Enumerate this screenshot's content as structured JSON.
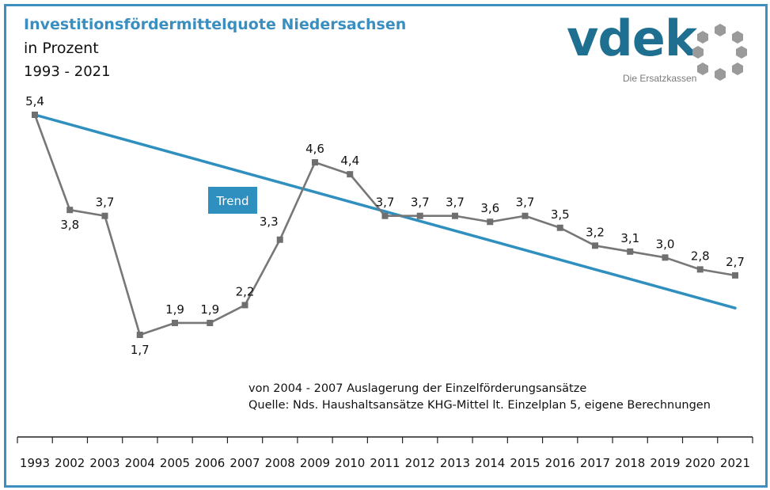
{
  "header": {
    "title": "Investitionsfördermittelquote Niedersachsen",
    "subtitle": "in Prozent",
    "period": "1993 - 2021"
  },
  "logo": {
    "wordmark": "vdek",
    "tagline": "Die Ersatzkassen",
    "icon": "ring-of-hexagons-icon"
  },
  "notes": {
    "line1": "von 2004 - 2007 Auslagerung der Einzelförderungsansätze",
    "line2": "Quelle: Nds. Haushaltsansätze KHG-Mittel lt. Einzelplan 5, eigene Berechnungen"
  },
  "colors": {
    "accent": "#3a8fc0",
    "trend": "#2f8fbf",
    "series": "#777777",
    "frame": "#3d8fbf"
  },
  "chart_data": {
    "type": "line",
    "categories": [
      "1993",
      "2002",
      "2003",
      "2004",
      "2005",
      "2006",
      "2007",
      "2008",
      "2009",
      "2010",
      "2011",
      "2012",
      "2013",
      "2014",
      "2015",
      "2016",
      "2017",
      "2018",
      "2019",
      "2020",
      "2021"
    ],
    "series": [
      {
        "values": [
          5.4,
          3.8,
          3.7,
          1.7,
          1.9,
          1.9,
          2.2,
          3.3,
          4.6,
          4.4,
          3.7,
          3.7,
          3.7,
          3.6,
          3.7,
          3.5,
          3.2,
          3.1,
          3.0,
          2.8,
          2.7
        ],
        "labels": [
          "5,4",
          "3,8",
          "3,7",
          "1,7",
          "1,9",
          "1,9",
          "2,2",
          "3,3",
          "4,6",
          "4,4",
          "3,7",
          "3,7",
          "3,7",
          "3,6",
          "3,7",
          "3,5",
          "3,2",
          "3,1",
          "3,0",
          "2,8",
          "2,7"
        ]
      },
      {
        "name": "Trend",
        "type": "trendline",
        "start": 5.4,
        "end": 2.15
      }
    ],
    "trend_label": "Trend",
    "legend": "none",
    "grid": false
  }
}
